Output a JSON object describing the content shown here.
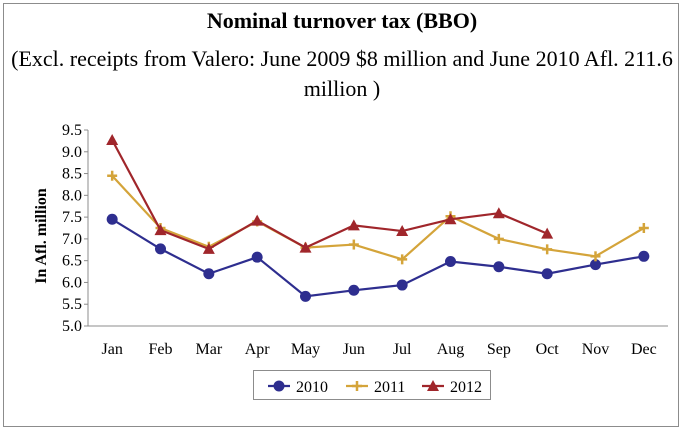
{
  "chart_data": {
    "type": "line",
    "title": "Nominal turnover tax (BBO)",
    "subtitle": "(Excl. receipts from Valero: June 2009 $8 million and June 2010 Afl. 211.6 million )",
    "xlabel": "",
    "ylabel": "In Afl. million",
    "categories": [
      "Jan",
      "Feb",
      "Mar",
      "Apr",
      "May",
      "Jun",
      "Jul",
      "Aug",
      "Sep",
      "Oct",
      "Nov",
      "Dec"
    ],
    "ylim": [
      5.0,
      9.5
    ],
    "yticks": [
      "5.0",
      "5.5",
      "6.0",
      "6.5",
      "7.0",
      "7.5",
      "8.0",
      "8.5",
      "9.0",
      "9.5"
    ],
    "grid": false,
    "legend_position": "bottom",
    "series": [
      {
        "name": "2010",
        "color": "#2e2e8f",
        "marker": "circle",
        "values": [
          7.45,
          6.77,
          6.2,
          6.58,
          5.68,
          5.82,
          5.94,
          6.48,
          6.36,
          6.2,
          6.41,
          6.6
        ]
      },
      {
        "name": "2011",
        "color": "#d4a43a",
        "marker": "plus",
        "values": [
          8.45,
          7.25,
          6.82,
          7.4,
          6.8,
          6.87,
          6.53,
          7.52,
          7.0,
          6.76,
          6.6,
          7.25
        ]
      },
      {
        "name": "2012",
        "color": "#a0262b",
        "marker": "triangle",
        "values": [
          9.27,
          7.2,
          6.77,
          7.42,
          6.8,
          7.31,
          7.18,
          7.45,
          7.59,
          7.12,
          null,
          null
        ]
      }
    ]
  }
}
